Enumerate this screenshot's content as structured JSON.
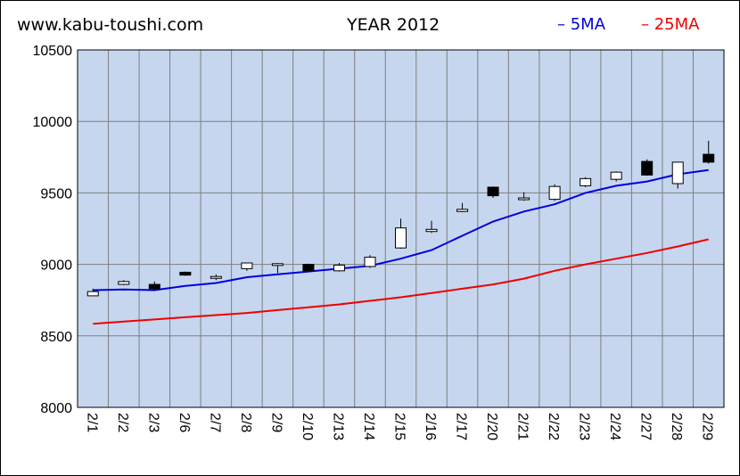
{
  "header": {
    "site": "www.kabu-toushi.com",
    "title": "YEAR 2012"
  },
  "chart_data": {
    "type": "candlestick",
    "title": "YEAR 2012",
    "y_ticks": [
      "10500",
      "10000",
      "9500",
      "9000",
      "8500",
      "8000"
    ],
    "ylim": [
      8000,
      10500
    ],
    "grid": true,
    "categories": [
      "2/1",
      "2/2",
      "2/3",
      "2/6",
      "2/7",
      "2/8",
      "2/9",
      "2/10",
      "2/13",
      "2/14",
      "2/15",
      "2/16",
      "2/17",
      "2/20",
      "2/21",
      "2/22",
      "2/23",
      "2/24",
      "2/27",
      "2/28",
      "2/29"
    ],
    "candles": [
      {
        "date": "2/1",
        "open": 8780,
        "high": 8830,
        "low": 8780,
        "close": 8810
      },
      {
        "date": "2/2",
        "open": 8860,
        "high": 8890,
        "low": 8855,
        "close": 8880
      },
      {
        "date": "2/3",
        "open": 8860,
        "high": 8880,
        "low": 8815,
        "close": 8830
      },
      {
        "date": "2/6",
        "open": 8945,
        "high": 8950,
        "low": 8920,
        "close": 8925
      },
      {
        "date": "2/7",
        "open": 8905,
        "high": 8930,
        "low": 8890,
        "close": 8915
      },
      {
        "date": "2/8",
        "open": 8970,
        "high": 9010,
        "low": 8955,
        "close": 9010
      },
      {
        "date": "2/9",
        "open": 8995,
        "high": 9010,
        "low": 8940,
        "close": 9005
      },
      {
        "date": "2/10",
        "open": 9000,
        "high": 9005,
        "low": 8950,
        "close": 8955
      },
      {
        "date": "2/13",
        "open": 8955,
        "high": 9010,
        "low": 8950,
        "close": 8995
      },
      {
        "date": "2/14",
        "open": 8985,
        "high": 9065,
        "low": 8975,
        "close": 9050
      },
      {
        "date": "2/15",
        "open": 9115,
        "high": 9320,
        "low": 9110,
        "close": 9255
      },
      {
        "date": "2/16",
        "open": 9230,
        "high": 9305,
        "low": 9220,
        "close": 9245
      },
      {
        "date": "2/17",
        "open": 9370,
        "high": 9430,
        "low": 9365,
        "close": 9385
      },
      {
        "date": "2/20",
        "open": 9540,
        "high": 9545,
        "low": 9465,
        "close": 9480
      },
      {
        "date": "2/21",
        "open": 9460,
        "high": 9505,
        "low": 9445,
        "close": 9465
      },
      {
        "date": "2/22",
        "open": 9455,
        "high": 9560,
        "low": 9445,
        "close": 9545
      },
      {
        "date": "2/23",
        "open": 9550,
        "high": 9610,
        "low": 9540,
        "close": 9600
      },
      {
        "date": "2/24",
        "open": 9595,
        "high": 9650,
        "low": 9580,
        "close": 9645
      },
      {
        "date": "2/27",
        "open": 9720,
        "high": 9735,
        "low": 9620,
        "close": 9625
      },
      {
        "date": "2/28",
        "open": 9565,
        "high": 9715,
        "low": 9530,
        "close": 9715
      },
      {
        "date": "2/29",
        "open": 9770,
        "high": 9865,
        "low": 9705,
        "close": 9715
      }
    ],
    "series": [
      {
        "name": "5MA",
        "color": "#0000dd",
        "values": [
          8820,
          8825,
          8820,
          8850,
          8870,
          8910,
          8930,
          8950,
          8970,
          8990,
          9040,
          9100,
          9200,
          9300,
          9370,
          9420,
          9500,
          9550,
          9580,
          9630,
          9660
        ]
      },
      {
        "name": "25MA",
        "color": "#ee0000",
        "values": [
          8585,
          8600,
          8615,
          8630,
          8645,
          8660,
          8680,
          8700,
          8720,
          8745,
          8770,
          8800,
          8830,
          8860,
          8900,
          8955,
          9000,
          9040,
          9080,
          9125,
          9175
        ]
      }
    ],
    "legend_position": "top-right",
    "colors": {
      "plot_bg": "#c6d6ee",
      "grid": "#7f7f7f",
      "bull_body": "#ffffff",
      "bear_body": "#000000"
    }
  }
}
